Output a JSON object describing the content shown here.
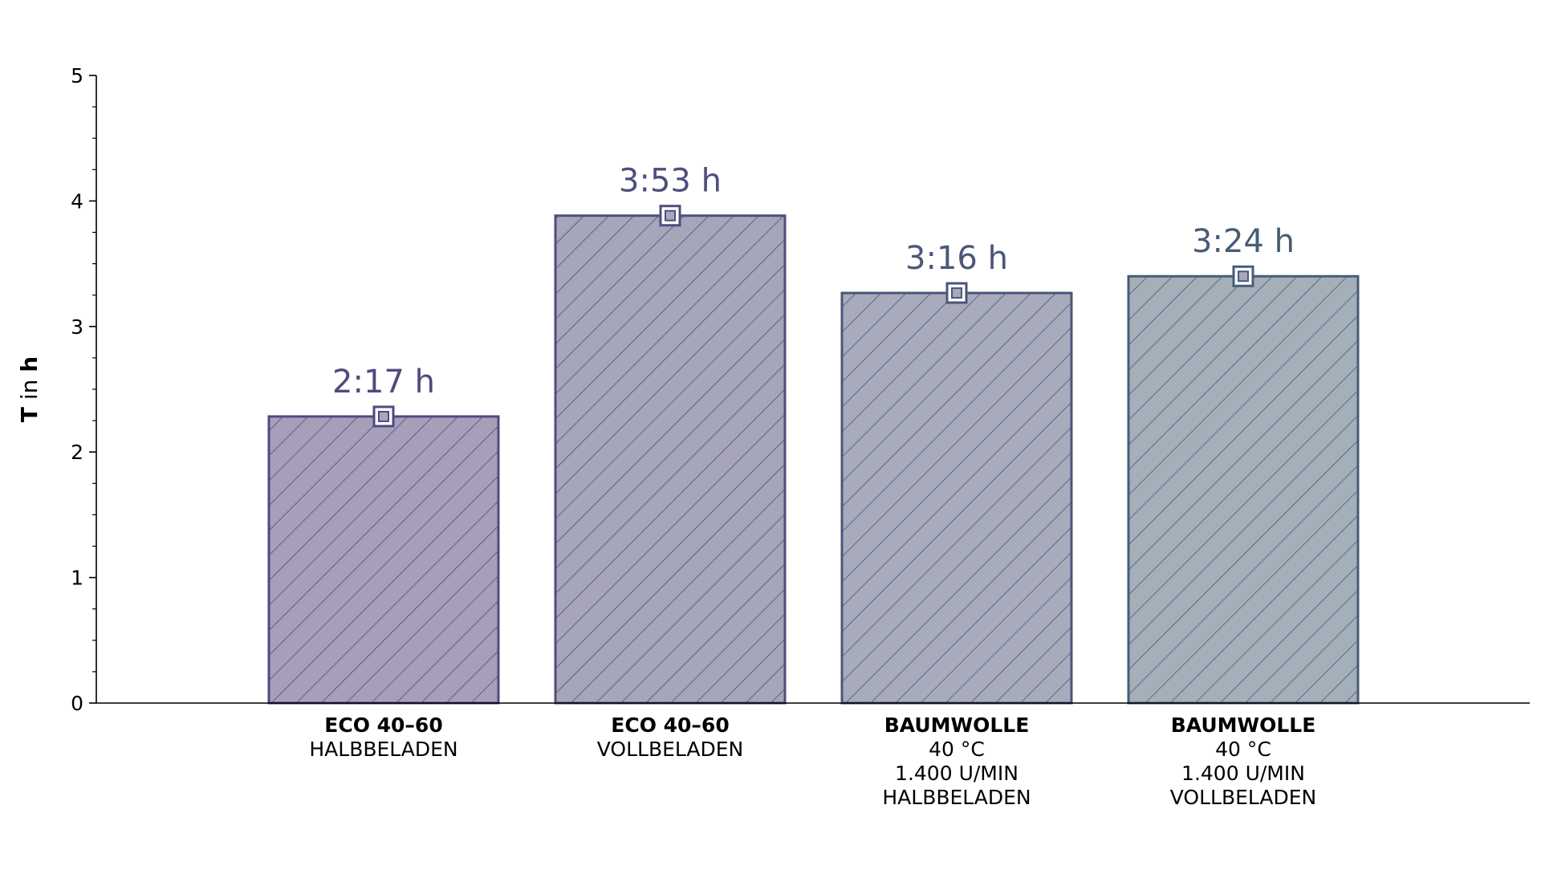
{
  "chart_data": {
    "type": "bar",
    "ylabel": {
      "bold": "T",
      "mid": " in ",
      "unit": "h"
    },
    "ylim": [
      0,
      5
    ],
    "yticks": [
      "0",
      "1",
      "2",
      "3",
      "4",
      "5"
    ],
    "grid": false,
    "bars": [
      {
        "value": 2.283,
        "label": "2:17 h",
        "category": {
          "title": "ECO 40–60",
          "lines": [
            "HALBBELADEN"
          ]
        },
        "fill": "#a79fba",
        "stroke": "#4f4a7e",
        "label_color": "#4f4a7e"
      },
      {
        "value": 3.883,
        "label": "3:53 h",
        "category": {
          "title": "ECO 40–60",
          "lines": [
            "VOLLBELADEN"
          ]
        },
        "fill": "#a6a5b9",
        "stroke": "#4d4f7c",
        "label_color": "#4d4f7c"
      },
      {
        "value": 3.267,
        "label": "3:16 h",
        "category": {
          "title": "BAUMWOLLE",
          "lines": [
            "40 °C",
            "1.400 U/MIN",
            "HALBBELADEN"
          ]
        },
        "fill": "#a8abbc",
        "stroke": "#4b5679",
        "label_color": "#4b5679"
      },
      {
        "value": 3.4,
        "label": "3:24 h",
        "category": {
          "title": "BAUMWOLLE",
          "lines": [
            "40 °C",
            "1.400 U/MIN",
            "VOLLBELADEN"
          ]
        },
        "fill": "#a3afb9",
        "stroke": "#475d75",
        "label_color": "#475d75"
      }
    ]
  }
}
